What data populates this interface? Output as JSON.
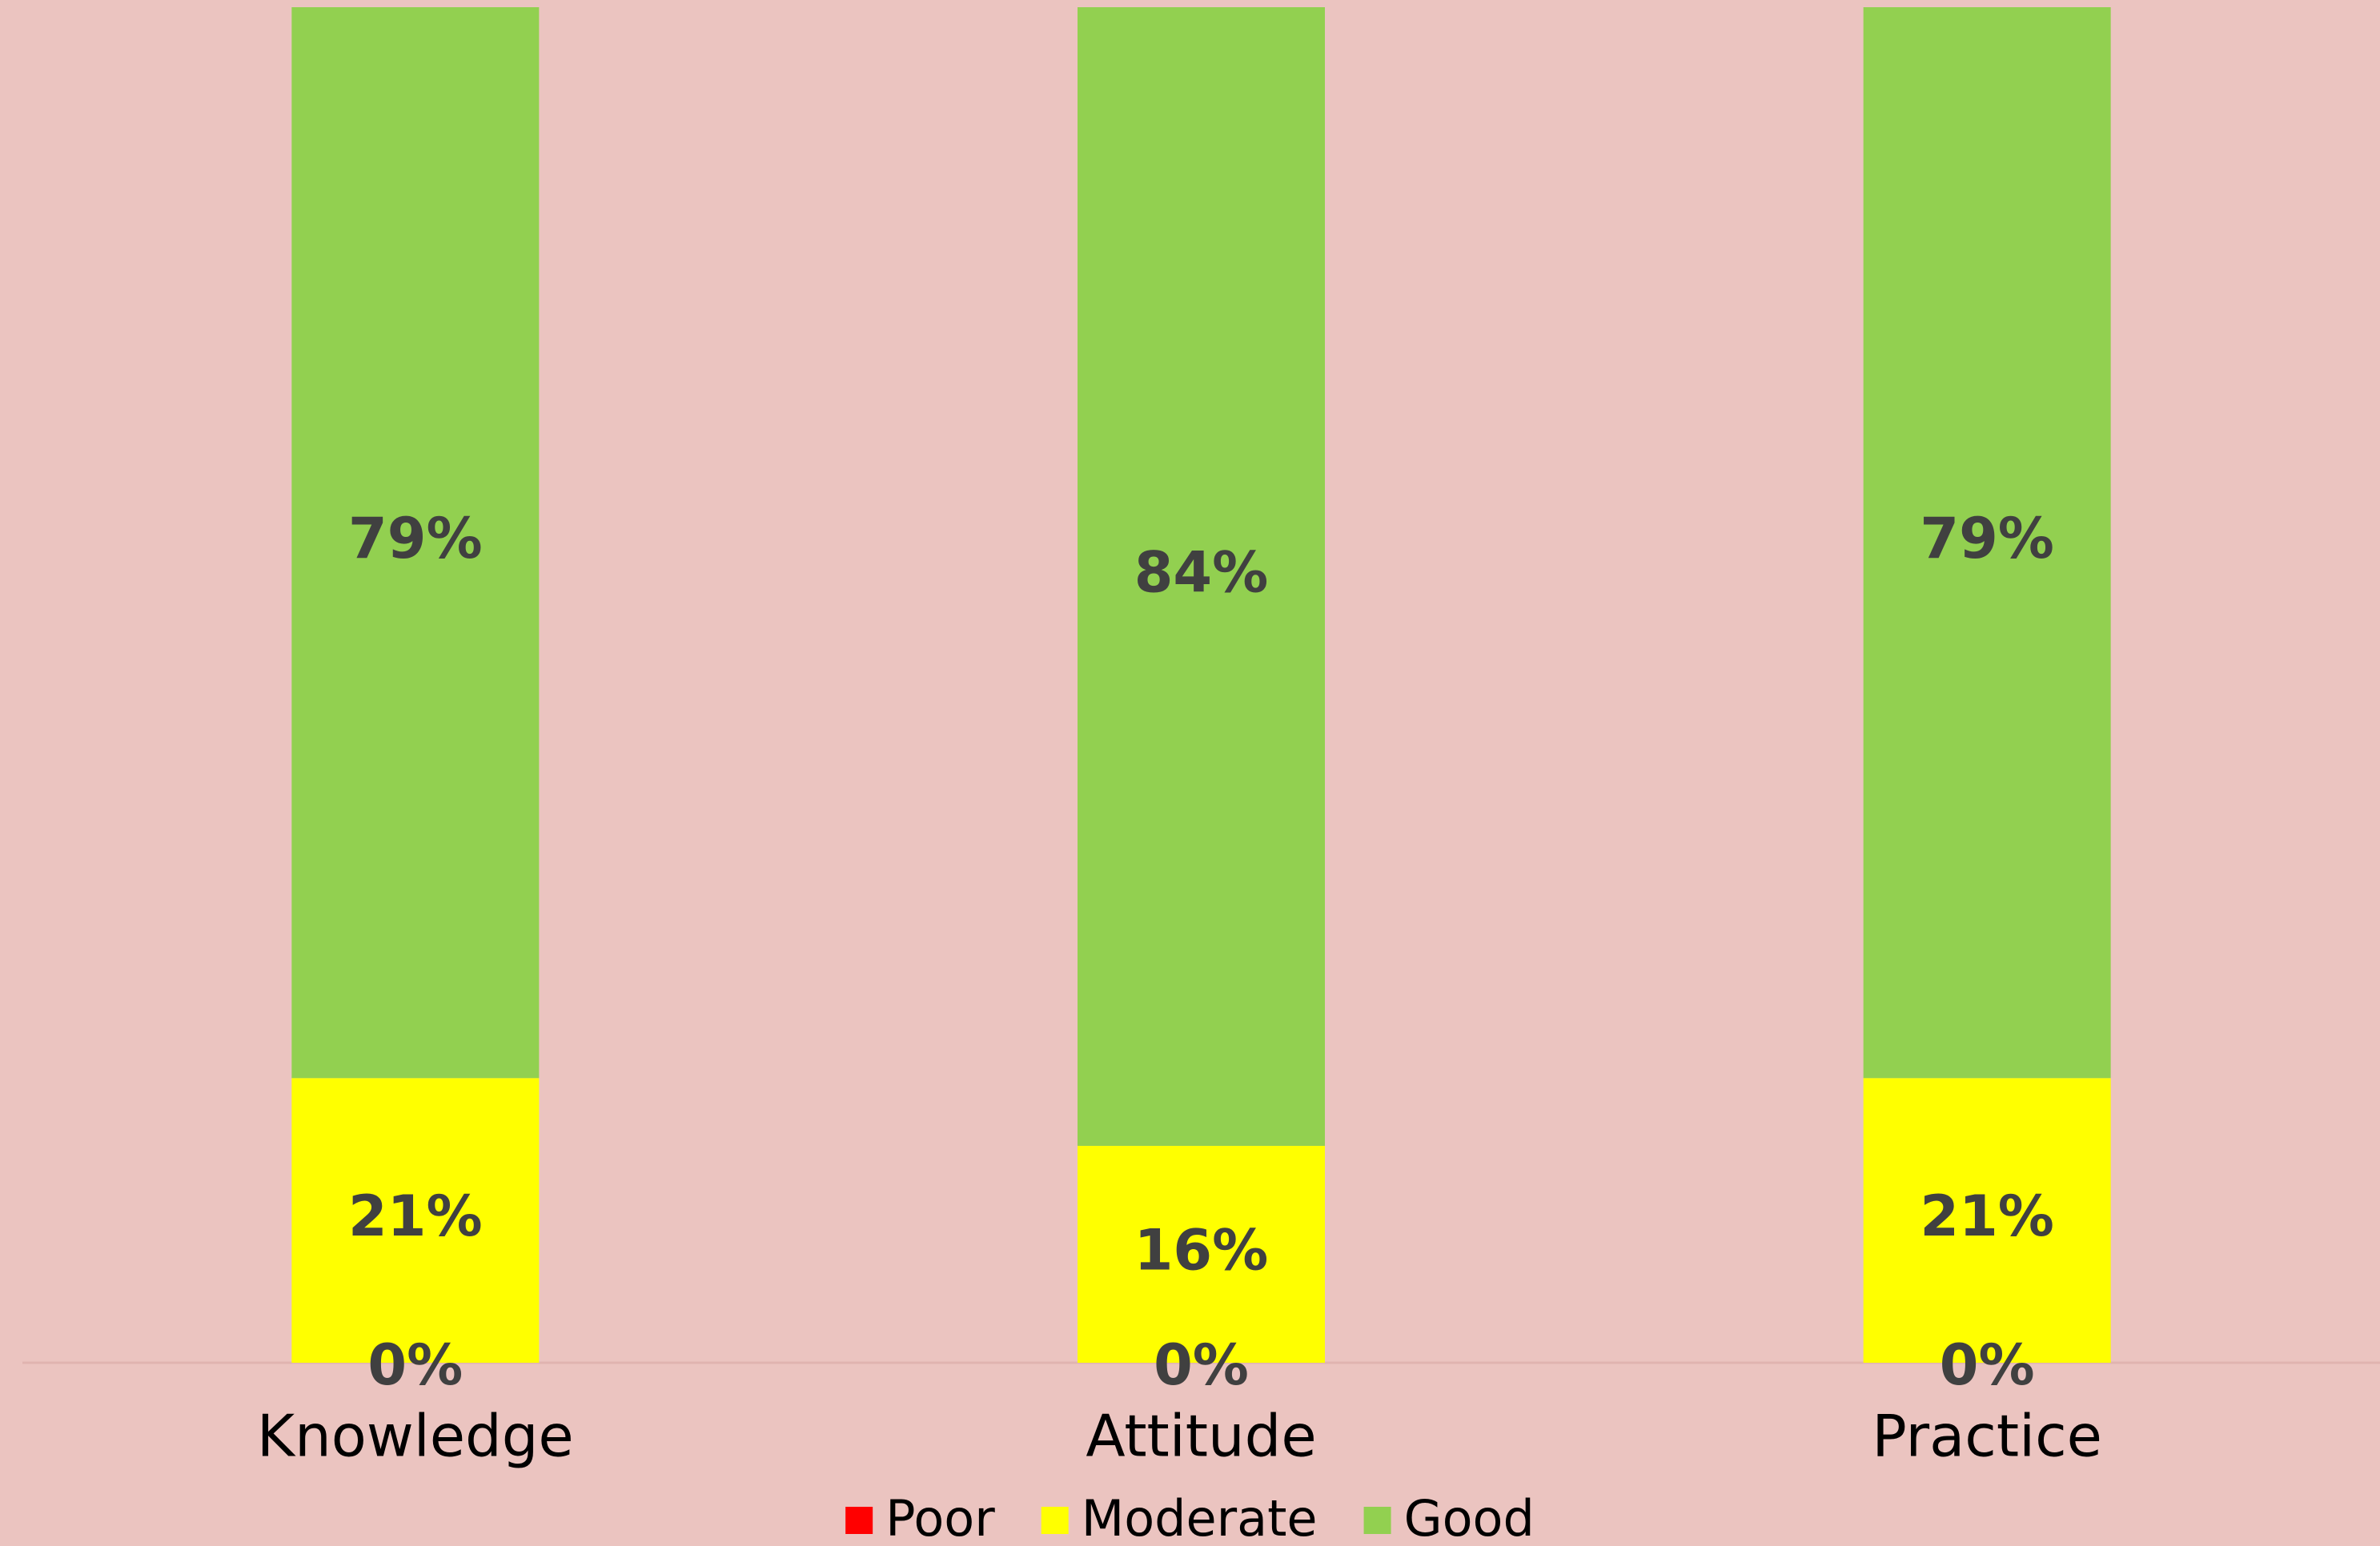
{
  "chart_data": {
    "type": "stacked_bar",
    "categories": [
      "Knowledge",
      "Attitude",
      "Practice"
    ],
    "series": [
      {
        "name": "Poor",
        "color": "#ff0000",
        "values": [
          0,
          0,
          0
        ],
        "value_labels": [
          "0%",
          "0%",
          "0%"
        ]
      },
      {
        "name": "Moderate",
        "color": "#ffff00",
        "values": [
          21,
          16,
          21
        ],
        "value_labels": [
          "21%",
          "16%",
          "21%"
        ]
      },
      {
        "name": "Good",
        "color": "#92d050",
        "values": [
          79,
          84,
          79
        ],
        "value_labels": [
          "79%",
          "84%",
          "79%"
        ]
      }
    ],
    "ylim": [
      0,
      100
    ],
    "legend": "bottom"
  }
}
